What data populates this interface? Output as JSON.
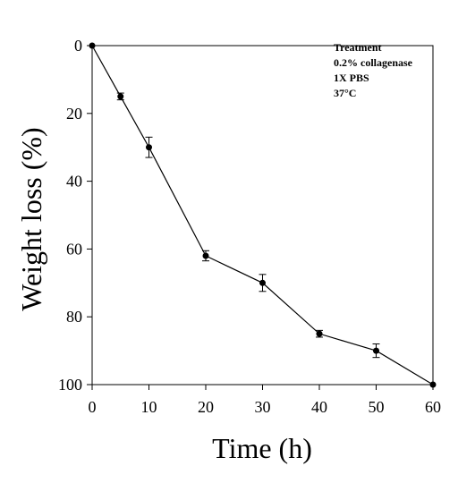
{
  "chart_data": {
    "type": "line",
    "xlabel": "Time (h)",
    "ylabel": "Weight loss (%)",
    "xlim": [
      0,
      60
    ],
    "ylim": [
      0,
      100
    ],
    "y_inverted": true,
    "xticks": [
      0,
      10,
      20,
      30,
      40,
      50,
      60
    ],
    "yticks": [
      0,
      20,
      40,
      60,
      80,
      100
    ],
    "grid": false,
    "legend_position": "top-right",
    "annotation_lines": [
      "Treatment",
      "0.2% collagenase",
      "1X PBS",
      "37°C"
    ],
    "series": [
      {
        "x": [
          0,
          5,
          10,
          20,
          30,
          40,
          50,
          60
        ],
        "y": [
          0,
          15,
          30,
          62,
          70,
          85,
          90,
          100
        ],
        "error": [
          0,
          1,
          3,
          1.5,
          2.5,
          1,
          2,
          0
        ],
        "color": "#000000"
      }
    ]
  }
}
